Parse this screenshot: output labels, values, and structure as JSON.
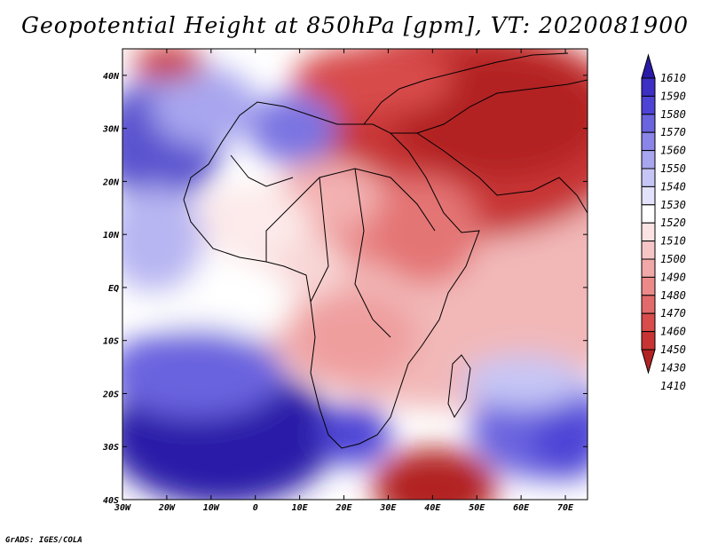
{
  "title": "Geopotential Height at 850hPa [gpm], VT: 2020081900",
  "credit": "GrADS: IGES/COLA",
  "map": {
    "lon_labels": [
      "30W",
      "20W",
      "10W",
      "0",
      "10E",
      "20E",
      "30E",
      "40E",
      "50E",
      "60E",
      "70E"
    ],
    "lat_labels": [
      "40N",
      "30N",
      "20N",
      "10N",
      "EQ",
      "10S",
      "20S",
      "30S",
      "40S"
    ],
    "lon_range": [
      -30,
      75
    ],
    "lat_range": [
      -40,
      45
    ]
  },
  "colorbar": {
    "levels": [
      "1610",
      "1590",
      "1580",
      "1570",
      "1560",
      "1550",
      "1540",
      "1530",
      "1520",
      "1510",
      "1500",
      "1490",
      "1480",
      "1470",
      "1460",
      "1450",
      "1430",
      "1410"
    ],
    "colors": [
      "#2a1aa8",
      "#3b2fc4",
      "#4d44d6",
      "#6a64df",
      "#8a86e8",
      "#a8a6ef",
      "#c6c6f6",
      "#e2e2fb",
      "#ffffff",
      "#fbe3e3",
      "#f6c6c6",
      "#f1a8a8",
      "#ec8a8a",
      "#e36a6a",
      "#d84c4c",
      "#c83434",
      "#b22222"
    ]
  }
}
